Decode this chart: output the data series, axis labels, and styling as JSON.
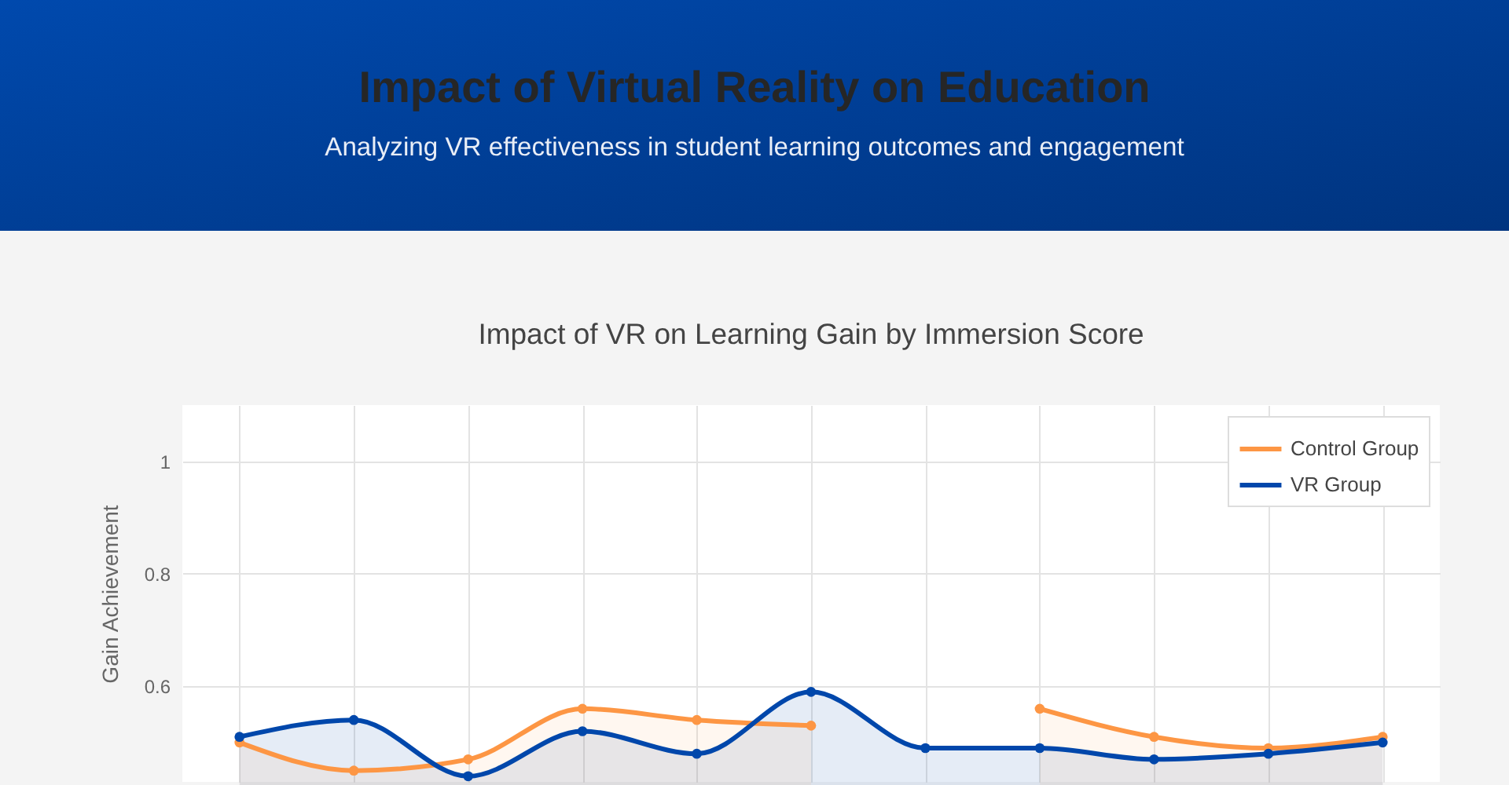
{
  "chart_data": {
    "type": "area",
    "title": "Impact of Virtual Reality on Education",
    "subtitle": "Analyzing VR effectiveness in student learning outcomes and engagement",
    "annotations": [
      "Impact of VR on Learning Gain by Immersion Score"
    ],
    "ylabel": "Gain Achievement",
    "categories": [
      null,
      null,
      null,
      null,
      null,
      null,
      null,
      null,
      null,
      null,
      null
    ],
    "series": [
      {
        "name": "Control Group",
        "color": "#fd9644",
        "values": [
          0.5,
          0.45,
          0.47,
          0.56,
          0.54,
          0.53,
          null,
          0.56,
          0.51,
          0.49,
          0.51
        ]
      },
      {
        "name": "VR Group",
        "color": "#0047ab",
        "values": [
          0.51,
          0.54,
          0.44,
          0.52,
          0.48,
          0.59,
          0.49,
          0.49,
          0.47,
          0.48,
          0.5
        ]
      }
    ],
    "ylim": [
      0.43,
      1.1
    ],
    "yticks": [
      0.6,
      0.8,
      1
    ],
    "grid": true,
    "legend": "top right",
    "marker": "circle",
    "line_style": "solid",
    "tick_labels": "y"
  }
}
